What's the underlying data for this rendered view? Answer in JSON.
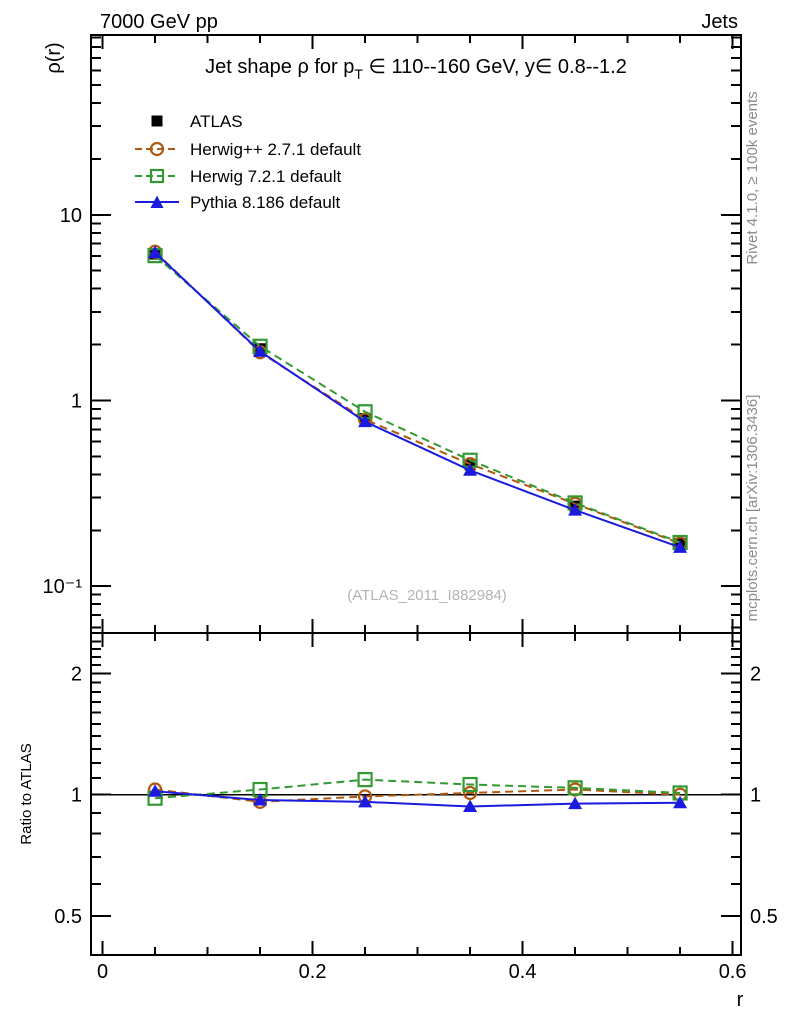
{
  "header": {
    "left": "7000 GeV pp",
    "right": "Jets"
  },
  "labels": {
    "y_main": "ρ(r)",
    "y_ratio": "Ratio to ATLAS",
    "x": "r",
    "title_part1": "Jet shape ρ for p",
    "title_sub": "T",
    "title_part2": " ∈ 110--160 GeV, y∈ 0.8--1.2",
    "watermark": "(ATLAS_2011_I882984)",
    "side_top": "Rivet 4.1.0, ≥ 100k events",
    "side_bottom": "mcplots.cern.ch [arXiv:1306.3436]"
  },
  "colors": {
    "watermark": "#b4b4b4",
    "side_text": "#8c8c8c",
    "frame": "#000000"
  },
  "chart_data": {
    "type": "line",
    "title": "Jet shape ρ for p_T ∈ 110--160 GeV, y∈ 0.8--1.2",
    "x": [
      0.05,
      0.15,
      0.25,
      0.35,
      0.45,
      0.55
    ],
    "xlabel": "r",
    "xlim": [
      -0.011,
      0.608
    ],
    "xticks": {
      "major": [
        0,
        0.2,
        0.4,
        0.6
      ],
      "labels": [
        "0",
        "0.2",
        "0.4",
        "0.6"
      ],
      "minor_step": 0.05
    },
    "main_panel": {
      "ylabel": "ρ(r)",
      "yscale": "log",
      "ylim": [
        0.056,
        93
      ],
      "yticks": {
        "values": [
          10,
          1,
          0.1
        ],
        "labels": [
          "10",
          "1",
          "10⁻¹"
        ]
      },
      "series": [
        {
          "name": "ATLAS",
          "color": "#000000",
          "marker": "square-filled",
          "line": "none",
          "values": [
            6.15,
            1.9,
            0.8,
            0.45,
            0.27,
            0.17
          ]
        },
        {
          "name": "Herwig++ 2.7.1 default",
          "color": "#b05a10",
          "marker": "circle-open",
          "line": "dashed",
          "values": [
            6.33,
            1.82,
            0.79,
            0.455,
            0.278,
            0.17
          ]
        },
        {
          "name": "Herwig 7.2.1 default",
          "color": "#339933",
          "marker": "square-open",
          "line": "dashed",
          "values": [
            6.03,
            1.96,
            0.87,
            0.477,
            0.281,
            0.172
          ]
        },
        {
          "name": "Pythia 8.186 default",
          "color": "#1b1be0",
          "marker": "triangle-filled",
          "line": "solid",
          "values": [
            6.27,
            1.84,
            0.77,
            0.421,
            0.257,
            0.162
          ]
        }
      ]
    },
    "ratio_panel": {
      "ylabel": "Ratio to ATLAS",
      "yscale": "log",
      "ylim": [
        0.4,
        2.52
      ],
      "baseline": 1,
      "yticks": {
        "values": [
          2,
          1,
          0.5
        ],
        "labels": [
          "2",
          "1",
          "0.5"
        ]
      },
      "series": [
        {
          "name": "Herwig++ 2.7.1 default",
          "color": "#b05a10",
          "marker": "circle-open",
          "line": "dashed",
          "values": [
            1.03,
            0.96,
            0.99,
            1.01,
            1.03,
            1.0
          ]
        },
        {
          "name": "Herwig 7.2.1 default",
          "color": "#339933",
          "marker": "square-open",
          "line": "dashed",
          "values": [
            0.98,
            1.03,
            1.09,
            1.06,
            1.04,
            1.01
          ]
        },
        {
          "name": "Pythia 8.186 default",
          "color": "#1b1be0",
          "marker": "triangle-filled",
          "line": "solid",
          "values": [
            1.02,
            0.97,
            0.96,
            0.935,
            0.95,
            0.955
          ]
        }
      ]
    }
  }
}
